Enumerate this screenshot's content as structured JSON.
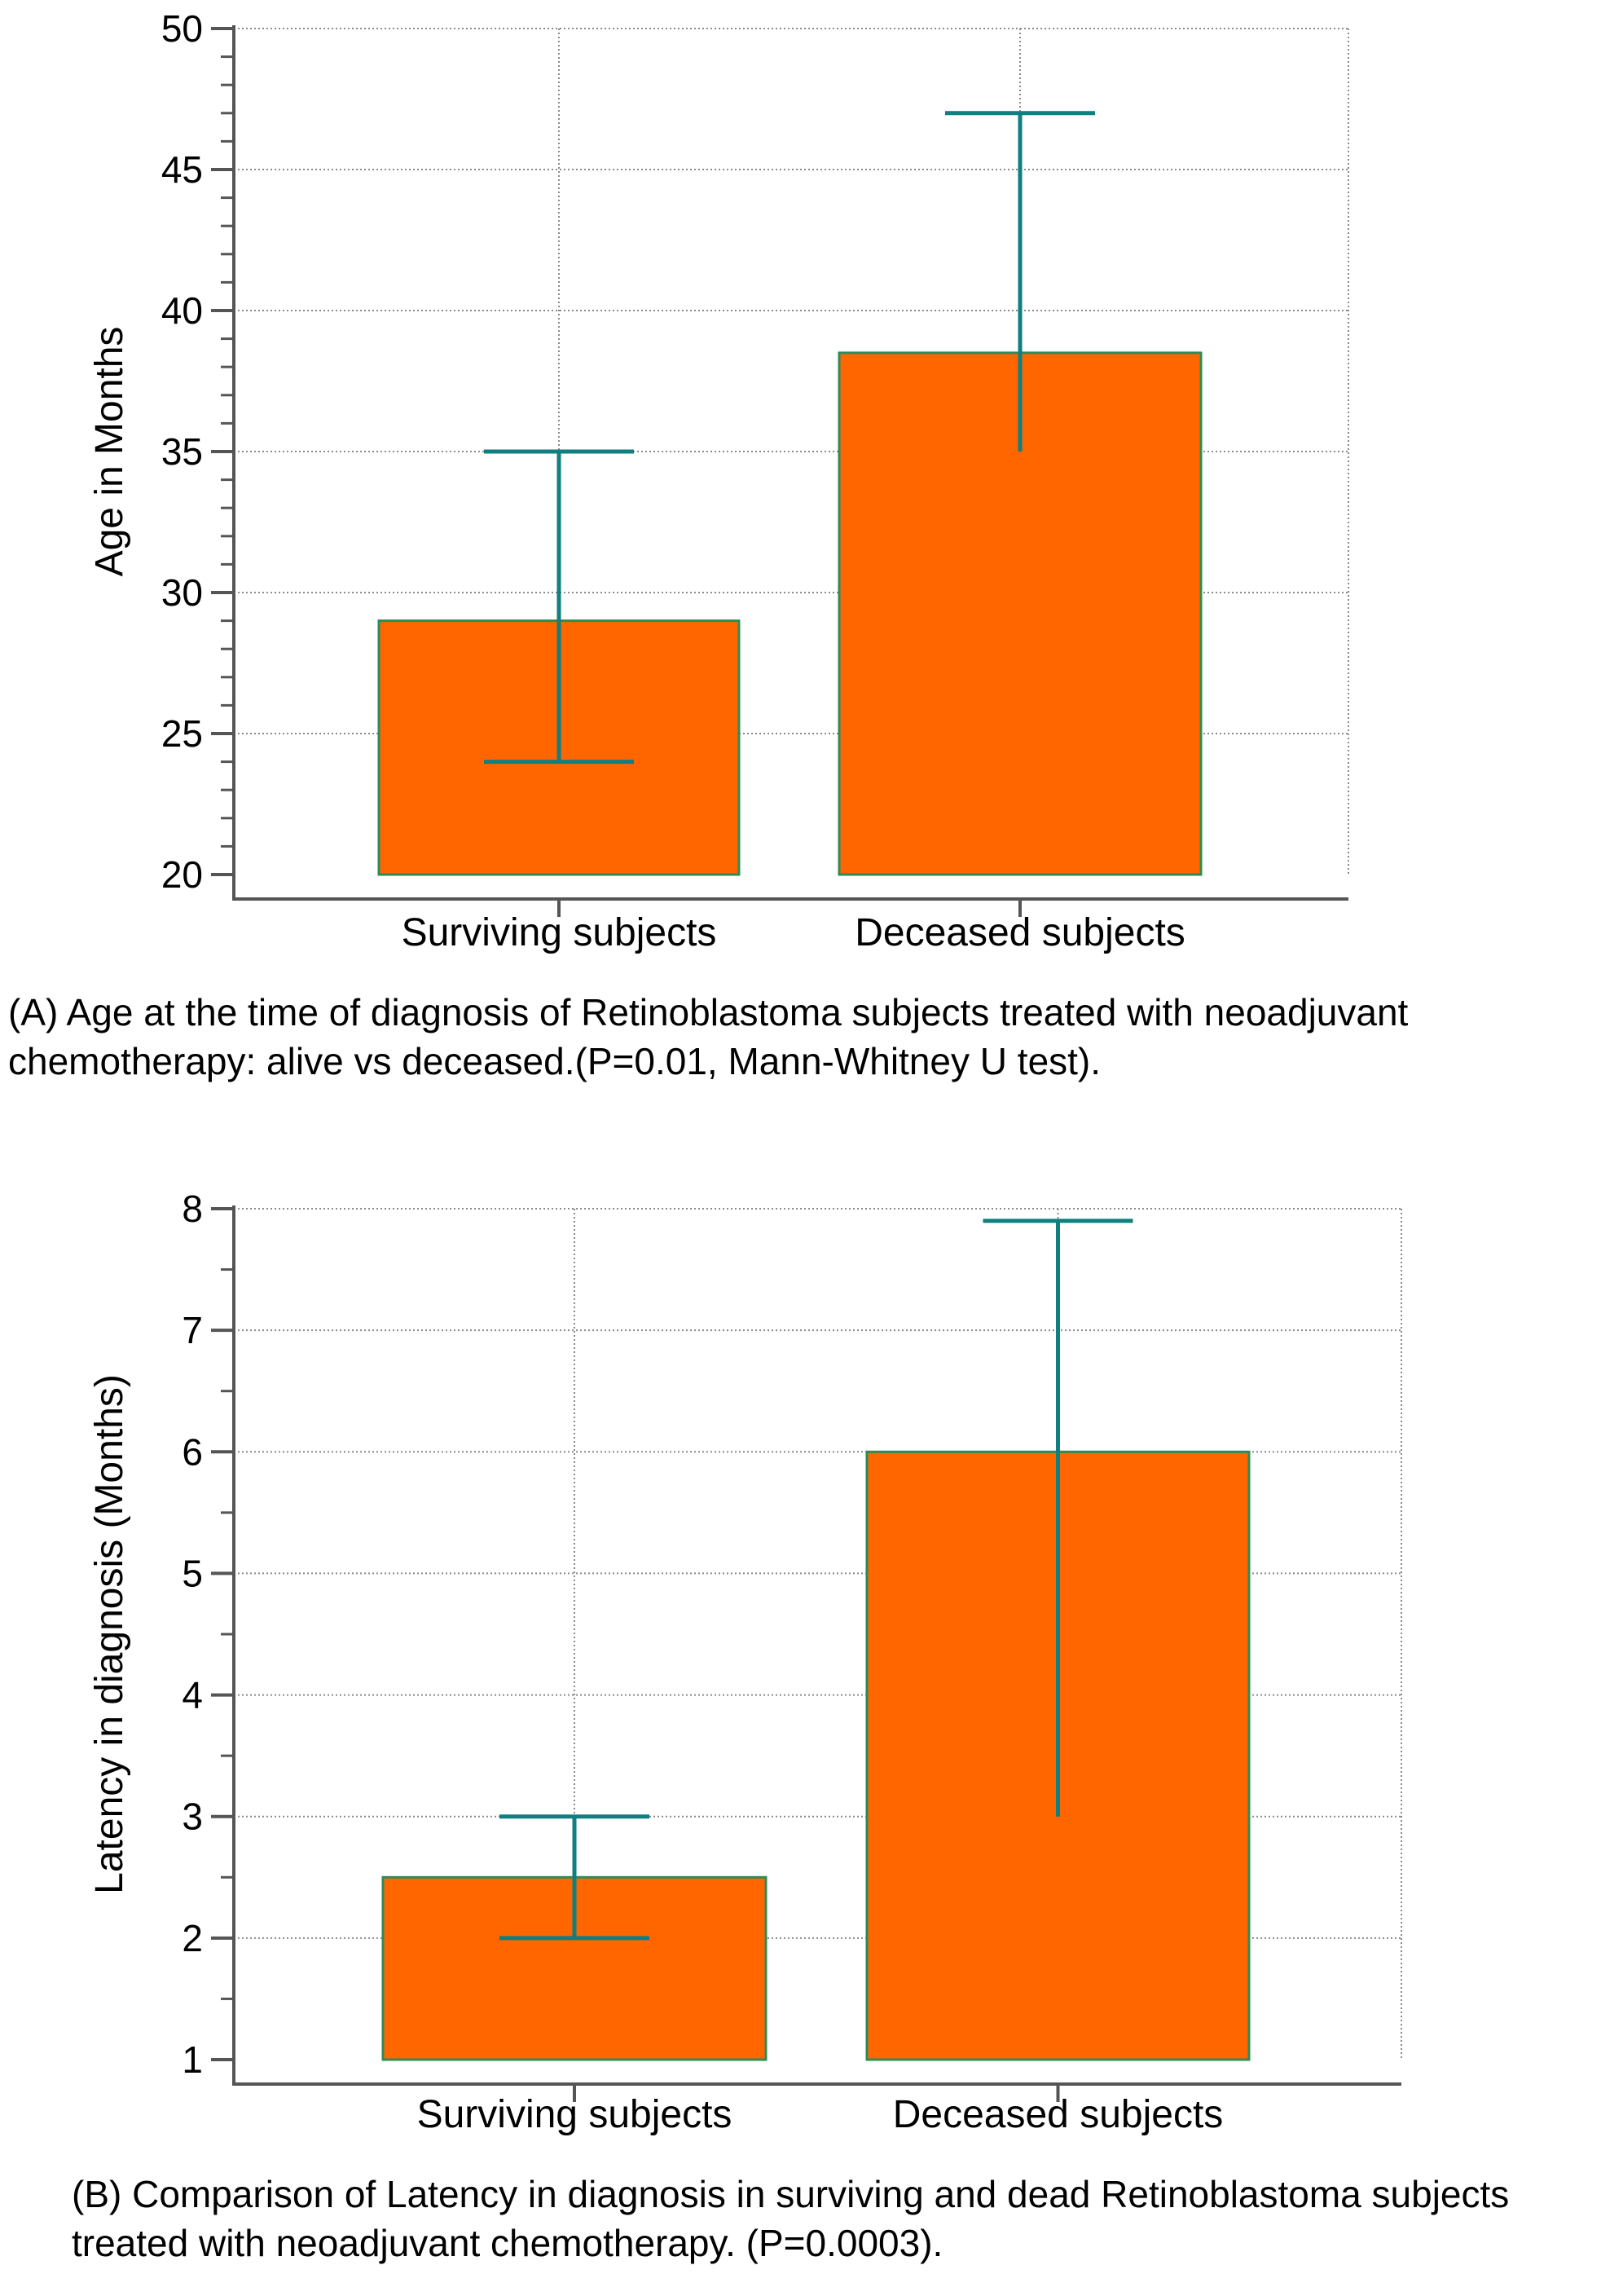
{
  "chart_data": [
    {
      "type": "bar",
      "panel": "A",
      "categories": [
        "Surviving subjects",
        "Deceased subjects"
      ],
      "values": [
        29,
        38.5
      ],
      "error_low": [
        24,
        35
      ],
      "error_high": [
        35,
        47
      ],
      "ylabel": "Age in Months",
      "xlabel": "",
      "ylim": [
        20,
        50
      ],
      "yticks": [
        20,
        25,
        30,
        35,
        40,
        45,
        50
      ],
      "minor_step": 1,
      "grid": true,
      "caption": "(A) Age at the time of diagnosis of Retinoblastoma subjects treated with neoadjuvant chemotherapy: alive vs deceased.(P=0.01, Mann-Whitney U test)."
    },
    {
      "type": "bar",
      "panel": "B",
      "categories": [
        "Surviving subjects",
        "Deceased subjects"
      ],
      "values": [
        2.5,
        6
      ],
      "error_low": [
        2,
        3
      ],
      "error_high": [
        3,
        7.9
      ],
      "ylabel": "Latency in diagnosis (Months)",
      "xlabel": "",
      "ylim": [
        1,
        8
      ],
      "yticks": [
        1,
        2,
        3,
        4,
        5,
        6,
        7,
        8
      ],
      "minor_step": 0.5,
      "grid": true,
      "caption": "(B) Comparison of Latency in diagnosis in surviving and dead Retinoblastoma subjects treated with neoadjuvant chemotherapy. (P=0.0003)."
    }
  ],
  "colors": {
    "bar_fill": "#FF6600",
    "bar_stroke": "#2E8B57",
    "error_bar": "#0F7F7F",
    "axis": "#555555",
    "grid": "#8A8A8A"
  }
}
